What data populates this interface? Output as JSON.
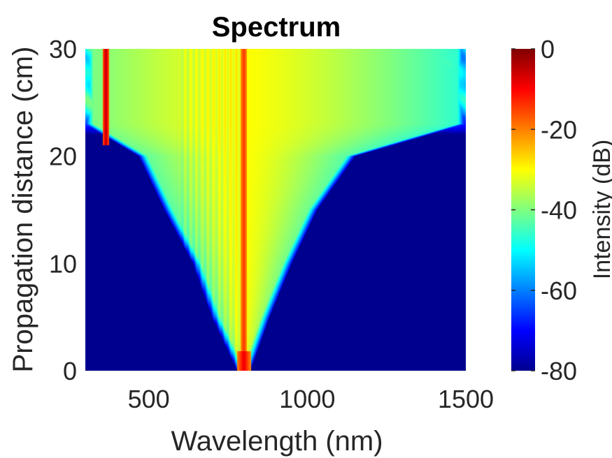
{
  "chart_data": {
    "type": "heatmap",
    "title": "Spectrum",
    "xlabel": "Wavelength (nm)",
    "ylabel": "Propagation distance (cm)",
    "xlim": [
      300,
      1500
    ],
    "ylim": [
      0,
      30
    ],
    "x_ticks": [
      500,
      1000,
      1500
    ],
    "y_ticks": [
      0,
      10,
      20,
      30
    ],
    "colorbar": {
      "label": "Intensity (dB)",
      "range": [
        -80,
        0
      ],
      "ticks": [
        0,
        -20,
        -40,
        -60,
        -80
      ],
      "colormap": "jet"
    },
    "features": {
      "pump_wavelength": 800,
      "dispersive_wave_wavelength": 365,
      "dispersive_wave_onset_distance": 22,
      "broadening_edges": [
        {
          "distance": 0,
          "short": 780,
          "long": 820
        },
        {
          "distance": 5,
          "short": 700,
          "long": 880
        },
        {
          "distance": 10,
          "short": 640,
          "long": 950
        },
        {
          "distance": 15,
          "short": 550,
          "long": 1030
        },
        {
          "distance": 20,
          "short": 470,
          "long": 1150
        },
        {
          "distance": 23,
          "short": 300,
          "long": 1500
        }
      ]
    },
    "grid": false,
    "background_level": -80
  }
}
